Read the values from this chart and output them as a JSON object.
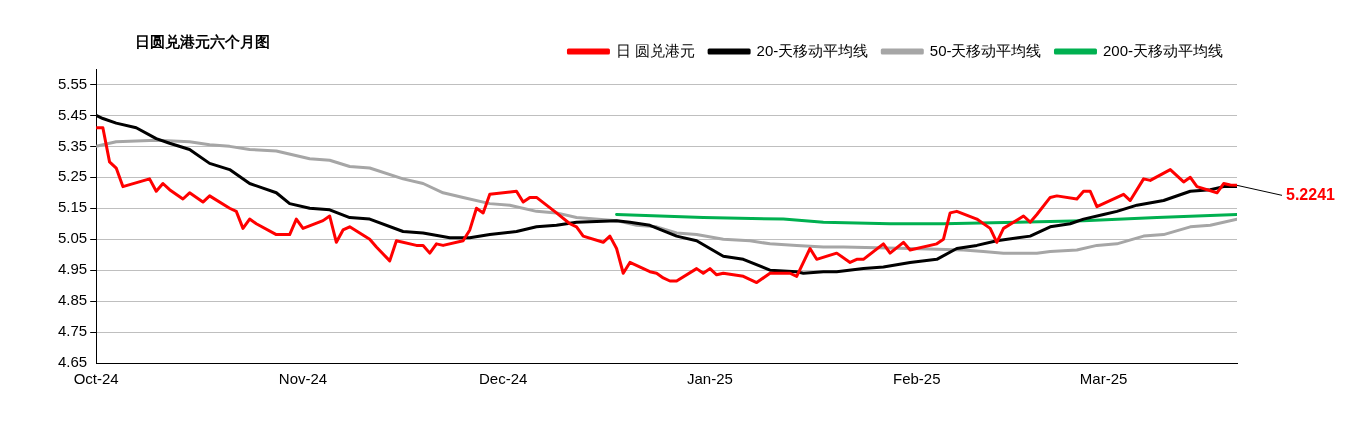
{
  "chart_data": {
    "type": "line",
    "title": "日圆兑港元六个月图",
    "xlim": [
      "2024-10-01",
      "2025-03-21"
    ],
    "xticks": [
      {
        "value": "2024-10-01",
        "label": "Oct-24"
      },
      {
        "value": "2024-11-01",
        "label": "Nov-24"
      },
      {
        "value": "2024-12-01",
        "label": "Dec-24"
      },
      {
        "value": "2025-01-01",
        "label": "Jan-25"
      },
      {
        "value": "2025-02-01",
        "label": "Feb-25"
      },
      {
        "value": "2025-03-01",
        "label": "Mar-25"
      }
    ],
    "ylim": [
      4.65,
      5.6
    ],
    "yticks": [
      4.65,
      4.75,
      4.85,
      4.95,
      5.05,
      5.15,
      5.25,
      5.35,
      5.45,
      5.55
    ],
    "grid": "y",
    "legend": "top right",
    "marker": "none",
    "line_style": "solid",
    "annotations": [
      {
        "text": "5.2241",
        "x": "2025-03-21",
        "y": 5.2241
      }
    ],
    "series": [
      {
        "name": "日 圆兑港元",
        "color": "#ff0000",
        "x": [
          "2024-10-01",
          "2024-10-02",
          "2024-10-03",
          "2024-10-04",
          "2024-10-05",
          "2024-10-09",
          "2024-10-10",
          "2024-10-11",
          "2024-10-12",
          "2024-10-14",
          "2024-10-15",
          "2024-10-17",
          "2024-10-18",
          "2024-10-21",
          "2024-10-22",
          "2024-10-23",
          "2024-10-24",
          "2024-10-25",
          "2024-10-28",
          "2024-10-30",
          "2024-10-31",
          "2024-11-01",
          "2024-11-04",
          "2024-11-05",
          "2024-11-06",
          "2024-11-07",
          "2024-11-08",
          "2024-11-11",
          "2024-11-12",
          "2024-11-14",
          "2024-11-15",
          "2024-11-18",
          "2024-11-19",
          "2024-11-20",
          "2024-11-21",
          "2024-11-22",
          "2024-11-25",
          "2024-11-26",
          "2024-11-27",
          "2024-11-28",
          "2024-11-29",
          "2024-12-03",
          "2024-12-04",
          "2024-12-05",
          "2024-12-06",
          "2024-12-09",
          "2024-12-11",
          "2024-12-12",
          "2024-12-13",
          "2024-12-16",
          "2024-12-17",
          "2024-12-18",
          "2024-12-19",
          "2024-12-20",
          "2024-12-23",
          "2024-12-24",
          "2024-12-25",
          "2024-12-26",
          "2024-12-27",
          "2024-12-30",
          "2024-12-31",
          "2025-01-01",
          "2025-01-02",
          "2025-01-03",
          "2025-01-06",
          "2025-01-08",
          "2025-01-10",
          "2025-01-13",
          "2025-01-14",
          "2025-01-16",
          "2025-01-17",
          "2025-01-20",
          "2025-01-22",
          "2025-01-23",
          "2025-01-24",
          "2025-01-27",
          "2025-01-28",
          "2025-01-30",
          "2025-01-31",
          "2025-02-04",
          "2025-02-05",
          "2025-02-06",
          "2025-02-07",
          "2025-02-10",
          "2025-02-12",
          "2025-02-13",
          "2025-02-14",
          "2025-02-17",
          "2025-02-18",
          "2025-02-19",
          "2025-02-21",
          "2025-02-22",
          "2025-02-25",
          "2025-02-26",
          "2025-02-27",
          "2025-02-28",
          "2025-03-04",
          "2025-03-05",
          "2025-03-07",
          "2025-03-08",
          "2025-03-11",
          "2025-03-13",
          "2025-03-14",
          "2025-03-15",
          "2025-03-18",
          "2025-03-19",
          "2025-03-20",
          "2025-03-21"
        ],
        "values": [
          5.41,
          5.41,
          5.3,
          5.28,
          5.22,
          5.245,
          5.205,
          5.23,
          5.21,
          5.18,
          5.2,
          5.17,
          5.19,
          5.15,
          5.14,
          5.085,
          5.115,
          5.1,
          5.065,
          5.065,
          5.115,
          5.085,
          5.11,
          5.125,
          5.04,
          5.08,
          5.09,
          5.05,
          5.025,
          4.98,
          5.045,
          5.03,
          5.03,
          5.005,
          5.035,
          5.03,
          5.045,
          5.08,
          5.15,
          5.135,
          5.195,
          5.205,
          5.17,
          5.185,
          5.185,
          5.135,
          5.1,
          5.09,
          5.06,
          5.04,
          5.06,
          5.02,
          4.94,
          4.975,
          4.945,
          4.94,
          4.925,
          4.915,
          4.915,
          4.955,
          4.94,
          4.955,
          4.935,
          4.94,
          4.93,
          4.91,
          4.94,
          4.94,
          4.93,
          5.02,
          4.985,
          5.005,
          4.975,
          4.985,
          4.985,
          5.035,
          5.005,
          5.04,
          5.015,
          5.035,
          5.05,
          5.135,
          5.14,
          5.115,
          5.085,
          5.04,
          5.085,
          5.125,
          5.105,
          5.13,
          5.185,
          5.19,
          5.18,
          5.205,
          5.205,
          5.155,
          5.195,
          5.175,
          5.245,
          5.24,
          5.275,
          5.235,
          5.25,
          5.22,
          5.2,
          5.23,
          5.225,
          5.2241
        ]
      },
      {
        "name": "20-天移动平均线",
        "color": "#000000",
        "x": [
          "2024-10-01",
          "2024-10-02",
          "2024-10-04",
          "2024-10-07",
          "2024-10-10",
          "2024-10-12",
          "2024-10-15",
          "2024-10-18",
          "2024-10-21",
          "2024-10-24",
          "2024-10-26",
          "2024-10-28",
          "2024-10-30",
          "2024-11-02",
          "2024-11-05",
          "2024-11-08",
          "2024-11-11",
          "2024-11-16",
          "2024-11-19",
          "2024-11-23",
          "2024-11-26",
          "2024-11-29",
          "2024-12-03",
          "2024-12-06",
          "2024-12-09",
          "2024-12-12",
          "2024-12-18",
          "2024-12-20",
          "2024-12-23",
          "2024-12-27",
          "2024-12-30",
          "2025-01-03",
          "2025-01-06",
          "2025-01-10",
          "2025-01-14",
          "2025-01-15",
          "2025-01-18",
          "2025-01-20",
          "2025-01-24",
          "2025-01-27",
          "2025-01-31",
          "2025-02-04",
          "2025-02-07",
          "2025-02-10",
          "2025-02-13",
          "2025-02-18",
          "2025-02-21",
          "2025-02-24",
          "2025-02-26",
          "2025-03-01",
          "2025-03-03",
          "2025-03-06",
          "2025-03-10",
          "2025-03-14",
          "2025-03-17",
          "2025-03-19",
          "2025-03-21"
        ],
        "values": [
          5.45,
          5.44,
          5.425,
          5.41,
          5.375,
          5.36,
          5.34,
          5.295,
          5.275,
          5.23,
          5.215,
          5.2,
          5.165,
          5.15,
          5.145,
          5.12,
          5.115,
          5.075,
          5.07,
          5.055,
          5.055,
          5.065,
          5.075,
          5.09,
          5.095,
          5.105,
          5.11,
          5.105,
          5.095,
          5.06,
          5.045,
          4.995,
          4.985,
          4.95,
          4.945,
          4.94,
          4.945,
          4.945,
          4.955,
          4.96,
          4.975,
          4.985,
          5.02,
          5.03,
          5.045,
          5.06,
          5.09,
          5.1,
          5.115,
          5.13,
          5.14,
          5.16,
          5.175,
          5.205,
          5.21,
          5.22,
          5.22
        ]
      },
      {
        "name": "50-天移动平均线",
        "color": "#a6a6a6",
        "x": [
          "2024-10-01",
          "2024-10-04",
          "2024-10-10",
          "2024-10-15",
          "2024-10-18",
          "2024-10-21",
          "2024-10-24",
          "2024-10-28",
          "2024-11-02",
          "2024-11-05",
          "2024-11-08",
          "2024-11-11",
          "2024-11-16",
          "2024-11-19",
          "2024-11-22",
          "2024-11-25",
          "2024-11-29",
          "2024-12-02",
          "2024-12-06",
          "2024-12-09",
          "2024-12-12",
          "2024-12-18",
          "2024-12-21",
          "2024-12-24",
          "2024-12-27",
          "2024-12-30",
          "2025-01-03",
          "2025-01-07",
          "2025-01-10",
          "2025-01-14",
          "2025-01-18",
          "2025-01-21",
          "2025-01-31",
          "2025-02-08",
          "2025-02-11",
          "2025-02-14",
          "2025-02-19",
          "2025-02-21",
          "2025-02-25",
          "2025-02-28",
          "2025-03-03",
          "2025-03-07",
          "2025-03-10",
          "2025-03-14",
          "2025-03-17",
          "2025-03-21"
        ],
        "values": [
          5.35,
          5.365,
          5.37,
          5.365,
          5.355,
          5.35,
          5.34,
          5.335,
          5.31,
          5.305,
          5.285,
          5.28,
          5.245,
          5.23,
          5.2,
          5.185,
          5.165,
          5.16,
          5.14,
          5.135,
          5.12,
          5.11,
          5.095,
          5.09,
          5.07,
          5.065,
          5.05,
          5.045,
          5.035,
          5.03,
          5.025,
          5.025,
          5.02,
          5.015,
          5.01,
          5.005,
          5.005,
          5.01,
          5.015,
          5.03,
          5.035,
          5.06,
          5.065,
          5.09,
          5.095,
          5.115
        ]
      },
      {
        "name": "200-天移动平均线",
        "color": "#00b050",
        "x": [
          "2024-12-18",
          "2024-12-31",
          "2025-01-12",
          "2025-01-18",
          "2025-01-28",
          "2025-02-05",
          "2025-02-16",
          "2025-02-26",
          "2025-03-09",
          "2025-03-21"
        ],
        "values": [
          5.13,
          5.12,
          5.115,
          5.105,
          5.1,
          5.1,
          5.105,
          5.11,
          5.12,
          5.13
        ]
      }
    ]
  }
}
